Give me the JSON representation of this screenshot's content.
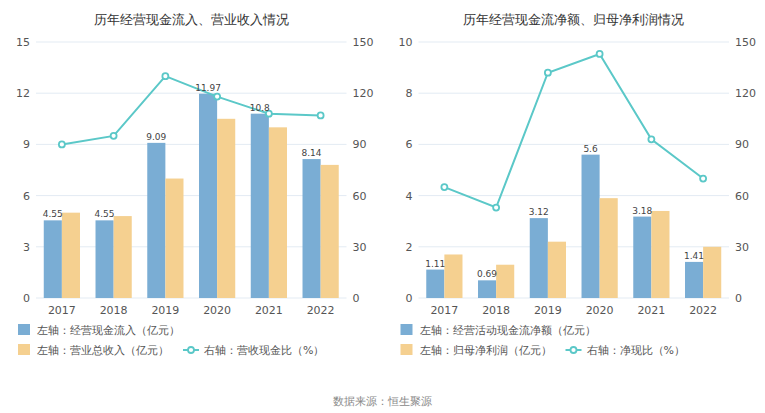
{
  "chart_data": [
    {
      "type": "bar",
      "title": "历年经营现金流入、营业收入情况",
      "categories": [
        "2017",
        "2018",
        "2019",
        "2020",
        "2021",
        "2022"
      ],
      "series": [
        {
          "name": "左轴：经营现金流入（亿元）",
          "type": "bar",
          "color": "#7aadd4",
          "values": [
            4.55,
            4.55,
            9.09,
            11.97,
            10.8,
            8.14
          ],
          "data_labels": true
        },
        {
          "name": "左轴：营业总收入（亿元）",
          "type": "bar",
          "color": "#f5d090",
          "values": [
            5.0,
            4.8,
            7.0,
            10.5,
            10.0,
            7.8
          ]
        },
        {
          "name": "右轴：营收现金比（%）",
          "type": "line",
          "axis": "y2",
          "color": "#5bc8c8",
          "marker": "circle",
          "values": [
            90,
            95,
            130,
            118,
            108,
            107
          ]
        }
      ],
      "ylim": [
        0,
        15
      ],
      "yticks": [
        0,
        3,
        6,
        9,
        12,
        15
      ],
      "y2lim": [
        0,
        150
      ],
      "y2ticks": [
        0,
        30,
        60,
        90,
        120,
        150
      ],
      "grid": true,
      "legend": "bottom"
    },
    {
      "type": "bar",
      "title": "历年经营现金流净额、归母净利润情况",
      "categories": [
        "2017",
        "2018",
        "2019",
        "2020",
        "2021",
        "2022"
      ],
      "series": [
        {
          "name": "左轴：经营活动现金流净额（亿元）",
          "type": "bar",
          "color": "#7aadd4",
          "values": [
            1.11,
            0.69,
            3.12,
            5.6,
            3.18,
            1.41
          ],
          "data_labels": true
        },
        {
          "name": "左轴：归母净利润（亿元）",
          "type": "bar",
          "color": "#f5d090",
          "values": [
            1.7,
            1.3,
            2.2,
            3.9,
            3.4,
            2.0
          ]
        },
        {
          "name": "右轴：净现比（%）",
          "type": "line",
          "axis": "y2",
          "color": "#5bc8c8",
          "marker": "circle",
          "values": [
            65,
            53,
            132,
            143,
            93,
            70
          ]
        }
      ],
      "ylim": [
        0,
        10
      ],
      "yticks": [
        0,
        2,
        4,
        6,
        8,
        10
      ],
      "y2lim": [
        0,
        150
      ],
      "y2ticks": [
        0,
        30,
        60,
        90,
        120,
        150
      ],
      "grid": true,
      "legend": "bottom"
    }
  ],
  "annotations": [
    "数据来源：恒生聚源"
  ]
}
